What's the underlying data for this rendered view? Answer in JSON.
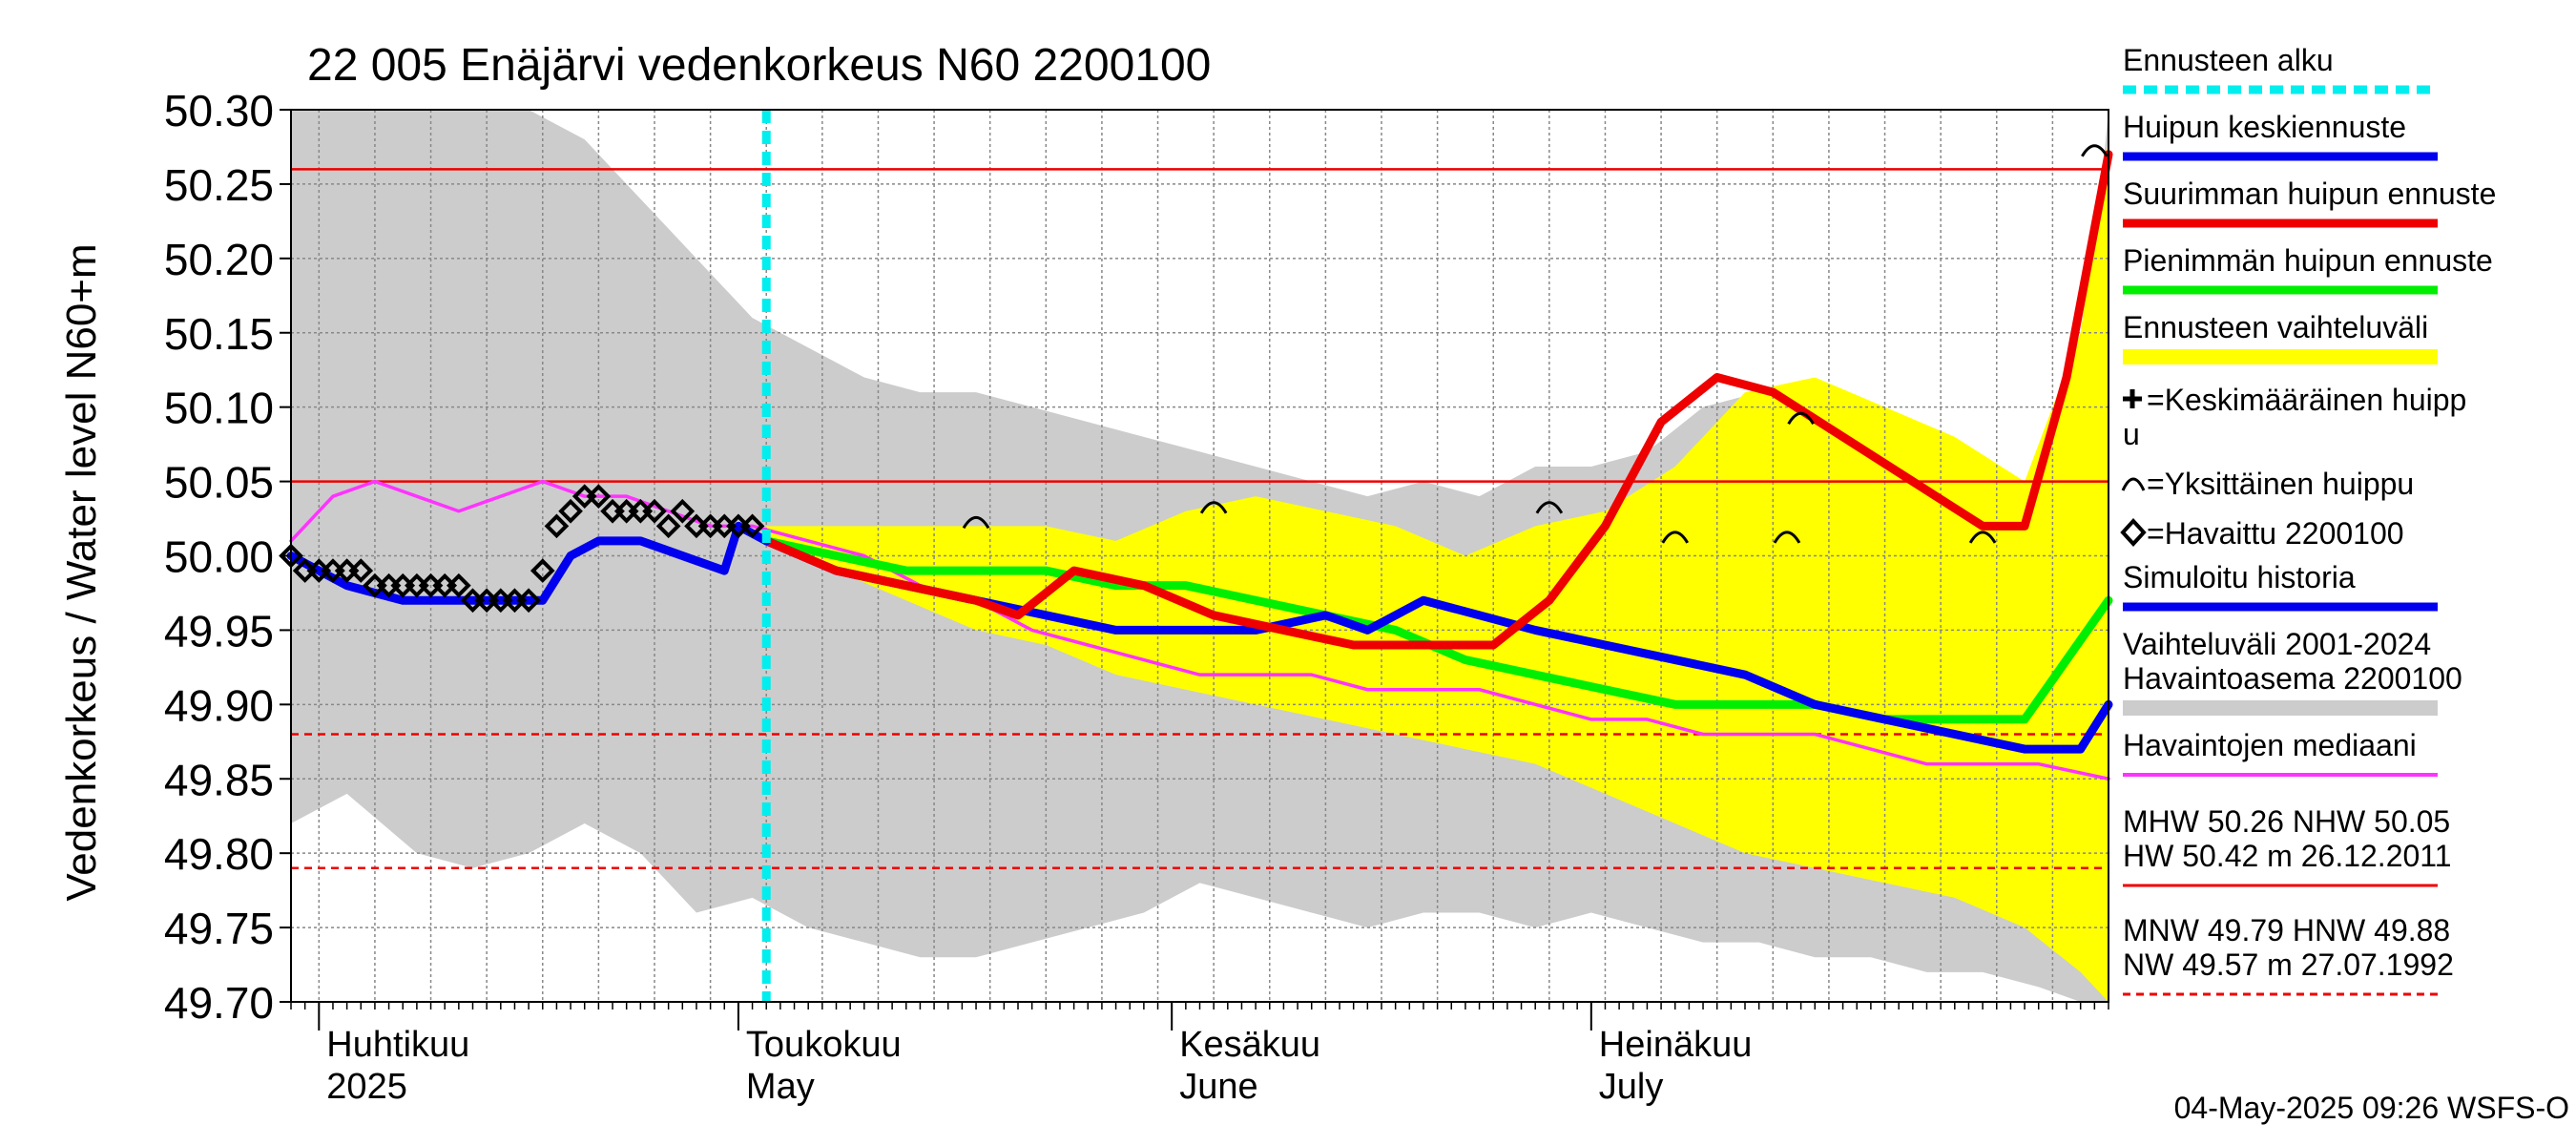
{
  "chart_data": {
    "type": "line",
    "title": "22 005 Enäjärvi vedenkorkeus N60 2200100",
    "ylabel": "Vedenkorkeus / Water level   N60+m",
    "ylim": [
      49.7,
      50.3
    ],
    "y_ticks": [
      49.7,
      49.75,
      49.8,
      49.85,
      49.9,
      49.95,
      50.0,
      50.05,
      50.1,
      50.15,
      50.2,
      50.25,
      50.3
    ],
    "x_range": [
      "2025-03-30",
      "2025-08-07"
    ],
    "grid": true,
    "month_labels": [
      {
        "date": "2025-04-01",
        "fi": "Huhtikuu",
        "en": "2025"
      },
      {
        "date": "2025-05-01",
        "fi": "Toukokuu",
        "en": "May"
      },
      {
        "date": "2025-06-01",
        "fi": "Kesäkuu",
        "en": "June"
      },
      {
        "date": "2025-07-01",
        "fi": "Heinäkuu",
        "en": "July"
      }
    ],
    "forecast_start": "2025-05-03",
    "reference_lines": {
      "MHW": 50.26,
      "NHW": 50.05,
      "HNW": 49.88,
      "MNW": 49.79
    },
    "series": [
      {
        "name": "Vaihteluväli 2001-2024 Havaintoasema 2200100",
        "kind": "band",
        "color": "#cccccc",
        "x": [
          "2025-03-30",
          "2025-04-03",
          "2025-04-08",
          "2025-04-12",
          "2025-04-16",
          "2025-04-20",
          "2025-04-24",
          "2025-04-28",
          "2025-05-02",
          "2025-05-06",
          "2025-05-10",
          "2025-05-14",
          "2025-05-18",
          "2025-05-22",
          "2025-05-26",
          "2025-05-30",
          "2025-06-03",
          "2025-06-07",
          "2025-06-11",
          "2025-06-15",
          "2025-06-19",
          "2025-06-23",
          "2025-06-27",
          "2025-07-01",
          "2025-07-05",
          "2025-07-09",
          "2025-07-13",
          "2025-07-17",
          "2025-07-21",
          "2025-07-25",
          "2025-07-29",
          "2025-08-02",
          "2025-08-05",
          "2025-08-07"
        ],
        "low": [
          49.82,
          49.84,
          49.8,
          49.79,
          49.8,
          49.82,
          49.8,
          49.76,
          49.77,
          49.75,
          49.74,
          49.73,
          49.73,
          49.74,
          49.75,
          49.76,
          49.78,
          49.77,
          49.76,
          49.75,
          49.76,
          49.76,
          49.75,
          49.76,
          49.75,
          49.74,
          49.74,
          49.73,
          49.73,
          49.72,
          49.72,
          49.71,
          49.7,
          49.7
        ],
        "high": [
          50.3,
          50.3,
          50.3,
          50.3,
          50.3,
          50.28,
          50.24,
          50.2,
          50.16,
          50.14,
          50.12,
          50.11,
          50.11,
          50.1,
          50.09,
          50.08,
          50.07,
          50.06,
          50.05,
          50.04,
          50.05,
          50.04,
          50.06,
          50.06,
          50.07,
          50.1,
          50.11,
          50.08,
          50.06,
          50.04,
          50.02,
          50.0,
          50.1,
          50.3
        ]
      },
      {
        "name": "Ennusteen vaihteluväli",
        "kind": "band",
        "color": "#ffff00",
        "x": [
          "2025-05-03",
          "2025-05-08",
          "2025-05-13",
          "2025-05-18",
          "2025-05-23",
          "2025-05-28",
          "2025-06-02",
          "2025-06-07",
          "2025-06-12",
          "2025-06-17",
          "2025-06-22",
          "2025-06-27",
          "2025-07-02",
          "2025-07-07",
          "2025-07-12",
          "2025-07-17",
          "2025-07-22",
          "2025-07-27",
          "2025-08-01",
          "2025-08-05",
          "2025-08-07"
        ],
        "low": [
          50.01,
          49.99,
          49.97,
          49.95,
          49.94,
          49.92,
          49.91,
          49.9,
          49.89,
          49.88,
          49.87,
          49.86,
          49.84,
          49.82,
          49.8,
          49.79,
          49.78,
          49.77,
          49.75,
          49.72,
          49.7
        ],
        "high": [
          50.02,
          50.02,
          50.02,
          50.02,
          50.02,
          50.01,
          50.03,
          50.04,
          50.03,
          50.02,
          50.0,
          50.02,
          50.03,
          50.06,
          50.11,
          50.12,
          50.1,
          50.08,
          50.05,
          50.15,
          50.28
        ]
      },
      {
        "name": "Havaintojen mediaani",
        "kind": "line",
        "color": "#ff33ff",
        "x": [
          "2025-03-30",
          "2025-04-02",
          "2025-04-05",
          "2025-04-08",
          "2025-04-11",
          "2025-04-14",
          "2025-04-17",
          "2025-04-20",
          "2025-04-23",
          "2025-04-26",
          "2025-04-29",
          "2025-05-02",
          "2025-05-06",
          "2025-05-10",
          "2025-05-14",
          "2025-05-18",
          "2025-05-22",
          "2025-05-26",
          "2025-05-30",
          "2025-06-03",
          "2025-06-07",
          "2025-06-11",
          "2025-06-15",
          "2025-06-19",
          "2025-06-23",
          "2025-06-27",
          "2025-07-01",
          "2025-07-05",
          "2025-07-09",
          "2025-07-13",
          "2025-07-17",
          "2025-07-21",
          "2025-07-25",
          "2025-07-29",
          "2025-08-02",
          "2025-08-07"
        ],
        "values": [
          50.01,
          50.04,
          50.05,
          50.04,
          50.03,
          50.04,
          50.05,
          50.04,
          50.04,
          50.03,
          50.02,
          50.02,
          50.01,
          50.0,
          49.98,
          49.97,
          49.95,
          49.94,
          49.93,
          49.92,
          49.92,
          49.92,
          49.91,
          49.91,
          49.91,
          49.9,
          49.89,
          49.89,
          49.88,
          49.88,
          49.88,
          49.87,
          49.86,
          49.86,
          49.86,
          49.85
        ]
      },
      {
        "name": "Pienimmän huipun ennuste",
        "kind": "line",
        "color": "#00ee00",
        "x": [
          "2025-05-03",
          "2025-05-08",
          "2025-05-13",
          "2025-05-18",
          "2025-05-23",
          "2025-05-28",
          "2025-06-02",
          "2025-06-07",
          "2025-06-12",
          "2025-06-17",
          "2025-06-22",
          "2025-06-27",
          "2025-07-02",
          "2025-07-07",
          "2025-07-12",
          "2025-07-17",
          "2025-07-22",
          "2025-07-27",
          "2025-08-01",
          "2025-08-04",
          "2025-08-07"
        ],
        "values": [
          50.01,
          50.0,
          49.99,
          49.99,
          49.99,
          49.98,
          49.98,
          49.97,
          49.96,
          49.95,
          49.93,
          49.92,
          49.91,
          49.9,
          49.9,
          49.9,
          49.89,
          49.89,
          49.89,
          49.93,
          49.97
        ]
      },
      {
        "name": "Huipun keskiennuste",
        "kind": "line",
        "color": "#0000ee",
        "x": [
          "2025-05-03",
          "2025-05-08",
          "2025-05-13",
          "2025-05-18",
          "2025-05-23",
          "2025-05-28",
          "2025-06-02",
          "2025-06-07",
          "2025-06-12",
          "2025-06-15",
          "2025-06-19",
          "2025-06-23",
          "2025-06-27",
          "2025-07-02",
          "2025-07-07",
          "2025-07-12",
          "2025-07-17",
          "2025-07-22",
          "2025-07-27",
          "2025-08-01",
          "2025-08-05",
          "2025-08-07"
        ],
        "values": [
          50.01,
          49.99,
          49.98,
          49.97,
          49.96,
          49.95,
          49.95,
          49.95,
          49.96,
          49.95,
          49.97,
          49.96,
          49.95,
          49.94,
          49.93,
          49.92,
          49.9,
          49.89,
          49.88,
          49.87,
          49.87,
          49.9
        ]
      },
      {
        "name": "Suurimman huipun ennuste",
        "kind": "line",
        "color": "#ee0000",
        "x": [
          "2025-05-03",
          "2025-05-08",
          "2025-05-13",
          "2025-05-18",
          "2025-05-21",
          "2025-05-25",
          "2025-05-30",
          "2025-06-04",
          "2025-06-09",
          "2025-06-14",
          "2025-06-19",
          "2025-06-24",
          "2025-06-28",
          "2025-07-02",
          "2025-07-06",
          "2025-07-10",
          "2025-07-14",
          "2025-07-19",
          "2025-07-24",
          "2025-07-29",
          "2025-08-01",
          "2025-08-04",
          "2025-08-07"
        ],
        "values": [
          50.01,
          49.99,
          49.98,
          49.97,
          49.96,
          49.99,
          49.98,
          49.96,
          49.95,
          49.94,
          49.94,
          49.94,
          49.97,
          50.02,
          50.09,
          50.12,
          50.11,
          50.08,
          50.05,
          50.02,
          50.02,
          50.12,
          50.27
        ]
      },
      {
        "name": "Simuloitu historia",
        "kind": "line",
        "color": "#0000ee",
        "x": [
          "2025-03-30",
          "2025-04-03",
          "2025-04-07",
          "2025-04-11",
          "2025-04-14",
          "2025-04-17",
          "2025-04-19",
          "2025-04-21",
          "2025-04-24",
          "2025-04-27",
          "2025-04-30",
          "2025-05-01",
          "2025-05-03"
        ],
        "values": [
          50.0,
          49.98,
          49.97,
          49.97,
          49.97,
          49.97,
          50.0,
          50.01,
          50.01,
          50.0,
          49.99,
          50.02,
          50.01
        ]
      },
      {
        "name": "Havaittu 2200100",
        "kind": "markers",
        "color": "#000000",
        "x": [
          "2025-03-30",
          "2025-03-31",
          "2025-04-01",
          "2025-04-02",
          "2025-04-03",
          "2025-04-04",
          "2025-04-05",
          "2025-04-06",
          "2025-04-07",
          "2025-04-08",
          "2025-04-09",
          "2025-04-10",
          "2025-04-11",
          "2025-04-12",
          "2025-04-13",
          "2025-04-14",
          "2025-04-15",
          "2025-04-16",
          "2025-04-17",
          "2025-04-18",
          "2025-04-19",
          "2025-04-20",
          "2025-04-21",
          "2025-04-22",
          "2025-04-23",
          "2025-04-24",
          "2025-04-25",
          "2025-04-26",
          "2025-04-27",
          "2025-04-28",
          "2025-04-29",
          "2025-04-30",
          "2025-05-01",
          "2025-05-02"
        ],
        "values": [
          50.0,
          49.99,
          49.99,
          49.99,
          49.99,
          49.99,
          49.98,
          49.98,
          49.98,
          49.98,
          49.98,
          49.98,
          49.98,
          49.97,
          49.97,
          49.97,
          49.97,
          49.97,
          49.99,
          50.02,
          50.03,
          50.04,
          50.04,
          50.03,
          50.03,
          50.03,
          50.03,
          50.02,
          50.03,
          50.02,
          50.02,
          50.02,
          50.02,
          50.02
        ]
      },
      {
        "name": "Yksittäinen huippu",
        "kind": "peaks",
        "color": "#000000",
        "x": [
          "2025-05-18",
          "2025-06-04",
          "2025-06-28",
          "2025-07-07",
          "2025-07-15",
          "2025-07-16",
          "2025-07-29",
          "2025-08-06"
        ],
        "values": [
          50.02,
          50.03,
          50.03,
          50.01,
          50.01,
          50.09,
          50.01,
          50.27
        ]
      }
    ]
  },
  "legend": {
    "entries": [
      {
        "label": "Ennusteen alku",
        "color": "#00eeee",
        "style": "dashed"
      },
      {
        "label": "Huipun keskiennuste",
        "color": "#0000ee",
        "style": "line"
      },
      {
        "label": "Suurimman huipun ennuste",
        "color": "#ee0000",
        "style": "line"
      },
      {
        "label": "Pienimmän huipun ennuste",
        "color": "#00ee00",
        "style": "line"
      },
      {
        "label": "Ennusteen vaihteluväli",
        "color": "#ffff00",
        "style": "band"
      },
      {
        "label": "=Keskimääräinen huipp",
        "label2": "u",
        "symbol": "plus"
      },
      {
        "label": "=Yksittäinen huippu",
        "symbol": "arc"
      },
      {
        "label": "=Havaittu 2200100",
        "symbol": "diamond"
      },
      {
        "label": "Simuloitu historia",
        "color": "#0000ee",
        "style": "line"
      },
      {
        "label": "Vaihteluväli 2001-2024",
        "label2": " Havaintoasema 2200100",
        "color": "#cccccc",
        "style": "band"
      },
      {
        "label": "Havaintojen mediaani",
        "color": "#ff33ff",
        "style": "line"
      }
    ],
    "stats": [
      {
        "line1": "MHW  50.26 NHW  50.05",
        "line2": "HW  50.42 m 26.12.2011",
        "color": "#ee0000",
        "style": "solid"
      },
      {
        "line1": "MNW  49.79 HNW  49.88",
        "line2": "NW  49.57 m 27.07.1992",
        "color": "#ee0000",
        "style": "dashed"
      }
    ]
  },
  "footer": "04-May-2025 09:26 WSFS-O"
}
